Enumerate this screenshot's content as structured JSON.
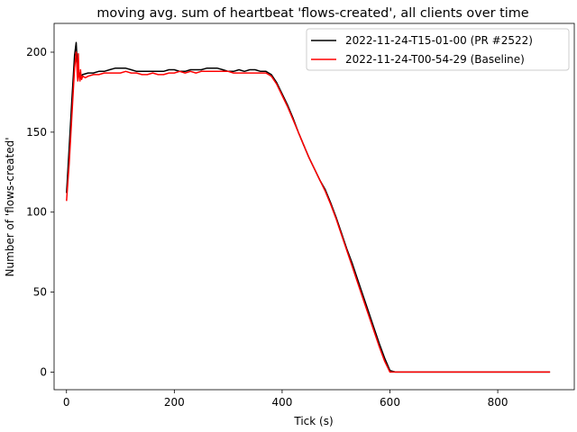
{
  "chart_data": {
    "type": "line",
    "title": "moving avg. sum of heartbeat 'flows-created', all clients over time",
    "xlabel": "Tick (s)",
    "ylabel": "Number of 'flows-created'",
    "xlim": [
      -23,
      942
    ],
    "ylim": [
      -11,
      218
    ],
    "xticks": [
      0,
      200,
      400,
      600,
      800
    ],
    "yticks": [
      0,
      50,
      100,
      150,
      200
    ],
    "grid": false,
    "legend_position": "upper right",
    "series": [
      {
        "name": "2022-11-24-T15-01-00 (PR #2522)",
        "color": "#000000",
        "x": [
          0,
          5,
          10,
          15,
          18,
          20,
          22,
          26,
          30,
          40,
          50,
          60,
          70,
          80,
          90,
          100,
          110,
          120,
          130,
          140,
          150,
          160,
          170,
          180,
          190,
          200,
          210,
          220,
          230,
          240,
          250,
          260,
          270,
          280,
          290,
          300,
          310,
          320,
          330,
          340,
          350,
          360,
          370,
          375,
          380,
          390,
          400,
          410,
          420,
          430,
          440,
          450,
          460,
          470,
          480,
          490,
          500,
          510,
          520,
          530,
          540,
          550,
          560,
          570,
          580,
          590,
          600,
          610,
          620,
          630,
          640,
          650,
          660,
          670,
          680,
          700,
          750,
          800,
          850,
          897
        ],
        "y": [
          112,
          140,
          170,
          198,
          206,
          193,
          188,
          185,
          186,
          187,
          187,
          188,
          188,
          189,
          190,
          190,
          190,
          189,
          188,
          188,
          188,
          188,
          188,
          188,
          189,
          189,
          188,
          188,
          189,
          189,
          189,
          190,
          190,
          190,
          189,
          188,
          188,
          189,
          188,
          189,
          189,
          188,
          188,
          187,
          186,
          181,
          174,
          167,
          159,
          150,
          142,
          134,
          127,
          120,
          114,
          106,
          97,
          87,
          77,
          68,
          58,
          48,
          38,
          28,
          18,
          9,
          1,
          0,
          0,
          0,
          0,
          0,
          0,
          0,
          0,
          0,
          0,
          0,
          0,
          0
        ]
      },
      {
        "name": "2022-11-24-T00-54-29 (Baseline)",
        "color": "#ff0000",
        "x": [
          0,
          5,
          10,
          15,
          18,
          20,
          21,
          22,
          23,
          24,
          25,
          26,
          27,
          28,
          30,
          35,
          40,
          50,
          60,
          70,
          80,
          90,
          100,
          110,
          120,
          130,
          140,
          150,
          160,
          170,
          180,
          190,
          200,
          210,
          220,
          230,
          240,
          250,
          260,
          270,
          280,
          290,
          300,
          310,
          320,
          330,
          340,
          350,
          360,
          370,
          375,
          380,
          390,
          400,
          410,
          420,
          430,
          440,
          450,
          460,
          470,
          480,
          490,
          500,
          510,
          520,
          530,
          540,
          550,
          560,
          570,
          580,
          590,
          600,
          610,
          620,
          630,
          640,
          650,
          660,
          670,
          680,
          700,
          750,
          800,
          850,
          897
        ],
        "y": [
          107,
          130,
          160,
          190,
          200,
          186,
          182,
          199,
          186,
          184,
          182,
          189,
          185,
          183,
          185,
          184,
          185,
          186,
          186,
          187,
          187,
          187,
          187,
          188,
          187,
          187,
          186,
          186,
          187,
          186,
          186,
          187,
          187,
          188,
          187,
          188,
          187,
          188,
          188,
          188,
          188,
          188,
          188,
          187,
          187,
          187,
          187,
          187,
          187,
          187,
          186,
          185,
          180,
          173,
          166,
          158,
          150,
          142,
          134,
          127,
          120,
          113,
          105,
          96,
          86,
          76,
          66,
          56,
          46,
          36,
          26,
          16,
          7,
          0,
          0,
          0,
          0,
          0,
          0,
          0,
          0,
          0,
          0,
          0,
          0,
          0,
          0
        ]
      }
    ]
  }
}
